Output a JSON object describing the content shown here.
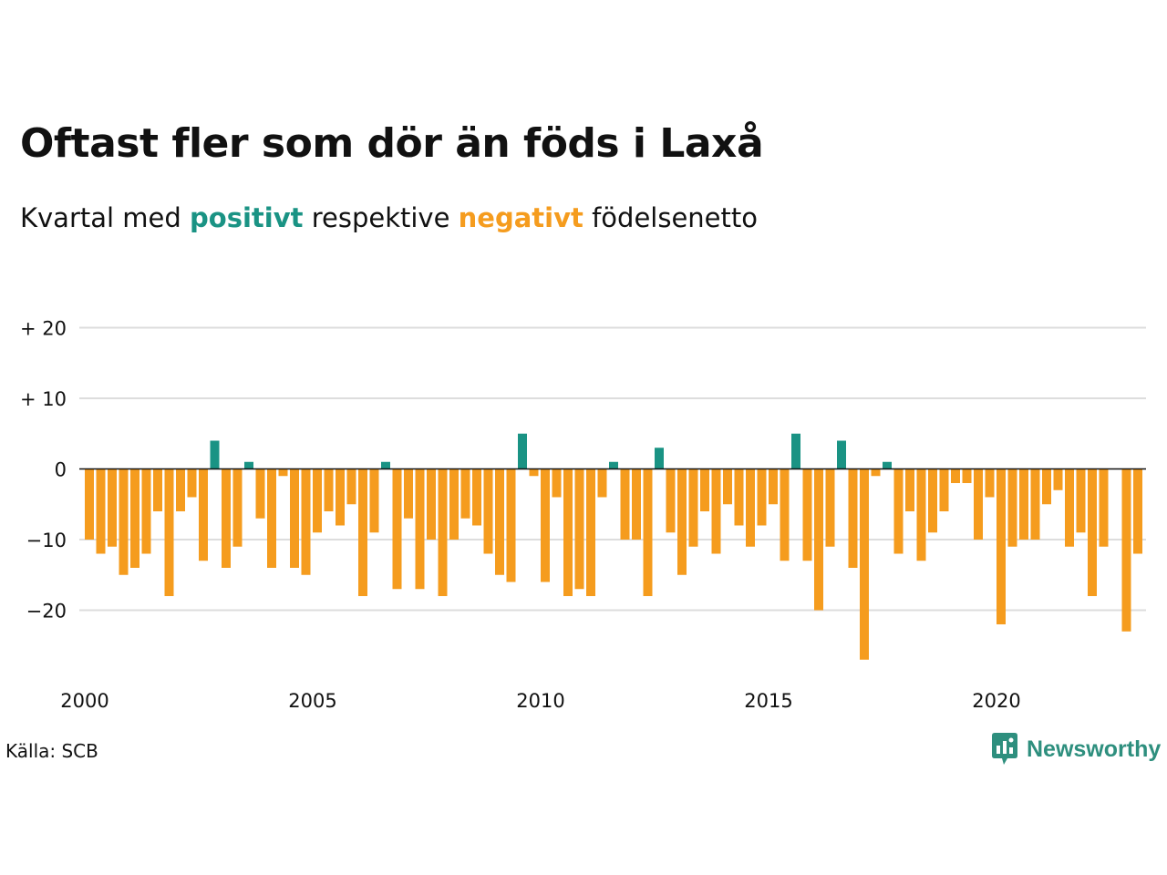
{
  "title": "Oftast fler som dör än föds i Laxå",
  "subtitle": {
    "before": "Kvartal med ",
    "positive": "positivt",
    "middle": " respektive ",
    "negative": "negativt",
    "after": " födelsenetto"
  },
  "source": "Källa: SCB",
  "brand": "Newsworthy",
  "colors": {
    "positive": "#1a9384",
    "negative": "#f59c1e",
    "grid": "#dddddd",
    "baseline": "#111111",
    "text": "#111111",
    "brand": "#2e8f7e"
  },
  "chart_data": {
    "type": "bar",
    "start": "2000 Q1",
    "frequency": "quarterly",
    "values": [
      -10,
      -12,
      -11,
      -15,
      -14,
      -12,
      -6,
      -18,
      -6,
      -4,
      -13,
      4,
      -14,
      -11,
      1,
      -7,
      -14,
      -1,
      -14,
      -15,
      -9,
      -6,
      -8,
      -5,
      -18,
      -9,
      1,
      -17,
      -7,
      -17,
      -10,
      -18,
      -10,
      -7,
      -8,
      -12,
      -15,
      -16,
      5,
      -1,
      -16,
      -4,
      -18,
      -17,
      -18,
      -4,
      1,
      -10,
      -10,
      -18,
      3,
      -9,
      -15,
      -11,
      -6,
      -12,
      -5,
      -8,
      -11,
      -8,
      -5,
      -13,
      5,
      -13,
      -20,
      -11,
      4,
      -14,
      -27,
      -1,
      1,
      -12,
      -6,
      -13,
      -9,
      -6,
      -2,
      -2,
      -10,
      -4,
      -22,
      -11,
      -10,
      -10,
      -5,
      -3,
      -11,
      -9,
      -18,
      -11,
      0,
      -23,
      -12
    ],
    "ylim": [
      -28,
      22
    ],
    "yticks": [
      {
        "value": 20,
        "label": "+ 20"
      },
      {
        "value": 10,
        "label": "+ 10"
      },
      {
        "value": 0,
        "label": "0"
      },
      {
        "value": -10,
        "label": "−10"
      },
      {
        "value": -20,
        "label": "−20"
      }
    ],
    "xticks": [
      {
        "year": 2000,
        "label": "2000"
      },
      {
        "year": 2005,
        "label": "2005"
      },
      {
        "year": 2010,
        "label": "2010"
      },
      {
        "year": 2015,
        "label": "2015"
      },
      {
        "year": 2020,
        "label": "2020"
      }
    ],
    "grid": true,
    "xlabel": "",
    "ylabel": ""
  }
}
